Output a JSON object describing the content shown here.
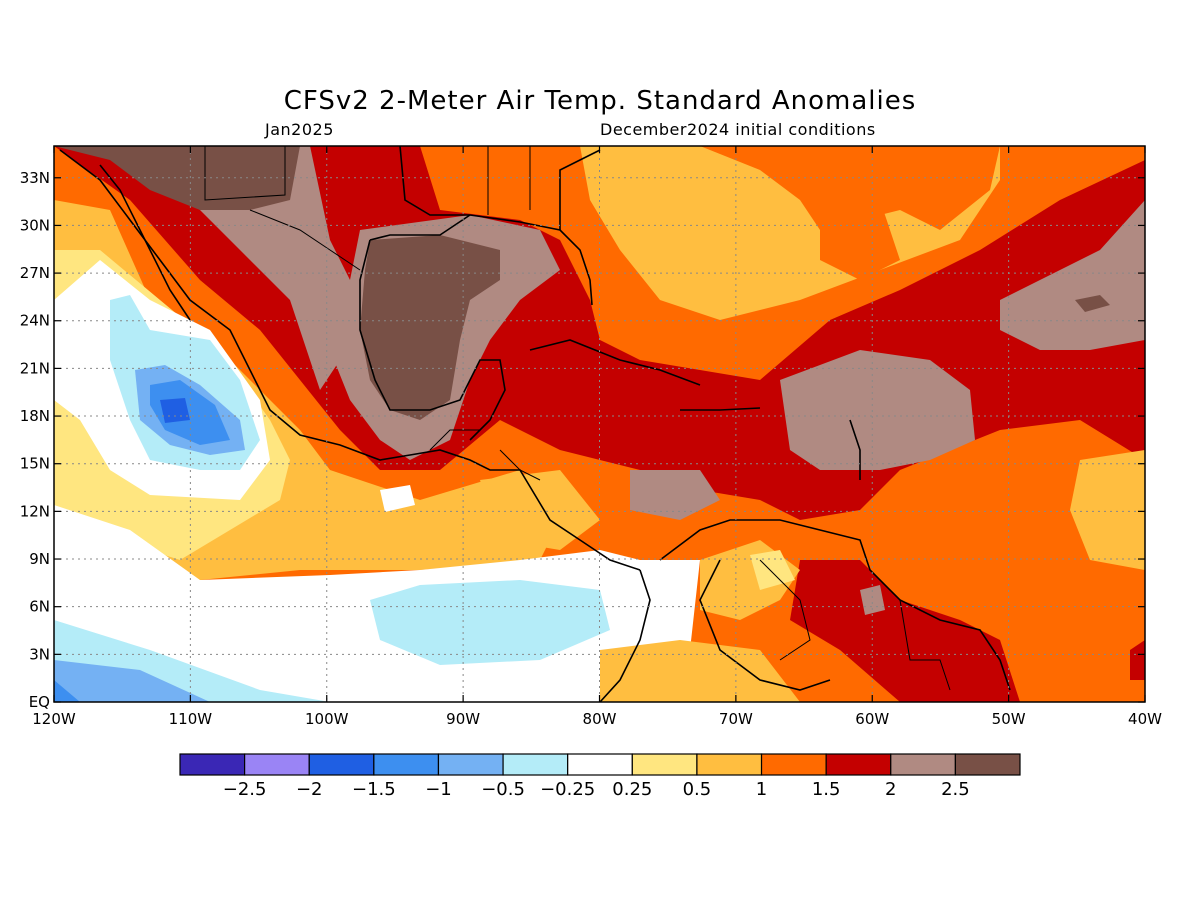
{
  "title": "CFSv2 2-Meter Air Temp. Standard Anomalies",
  "subtitle_left": "Jan2025",
  "subtitle_right": "December2024 initial conditions",
  "map": {
    "lon_range": [
      -120,
      -40
    ],
    "lat_range": [
      0,
      35
    ],
    "lat_ticks": [
      {
        "value": 0,
        "label": "EQ"
      },
      {
        "value": 3,
        "label": "3N"
      },
      {
        "value": 6,
        "label": "6N"
      },
      {
        "value": 9,
        "label": "9N"
      },
      {
        "value": 12,
        "label": "12N"
      },
      {
        "value": 15,
        "label": "15N"
      },
      {
        "value": 18,
        "label": "18N"
      },
      {
        "value": 21,
        "label": "21N"
      },
      {
        "value": 24,
        "label": "24N"
      },
      {
        "value": 27,
        "label": "27N"
      },
      {
        "value": 30,
        "label": "30N"
      },
      {
        "value": 33,
        "label": "33N"
      }
    ],
    "lon_ticks": [
      {
        "value": -120,
        "label": "120W"
      },
      {
        "value": -110,
        "label": "110W"
      },
      {
        "value": -100,
        "label": "100W"
      },
      {
        "value": -90,
        "label": "90W"
      },
      {
        "value": -80,
        "label": "80W"
      },
      {
        "value": -70,
        "label": "70W"
      },
      {
        "value": -60,
        "label": "60W"
      },
      {
        "value": -50,
        "label": "50W"
      },
      {
        "value": -40,
        "label": "40W"
      }
    ],
    "grid": "dotted"
  },
  "colorbar": {
    "colors": [
      "#3a27b5",
      "#9a84f5",
      "#1f5fe3",
      "#3d8ff0",
      "#74b1f3",
      "#b4ecf8",
      "#ffffff",
      "#ffe680",
      "#ffbe40",
      "#ff6a00",
      "#c40000",
      "#b08a82",
      "#785046"
    ],
    "labels": [
      "-2.5",
      "-2",
      "-1.5",
      "-1",
      "-0.5",
      "-0.25",
      "0.25",
      "0.5",
      "1",
      "1.5",
      "2",
      "2.5"
    ]
  }
}
